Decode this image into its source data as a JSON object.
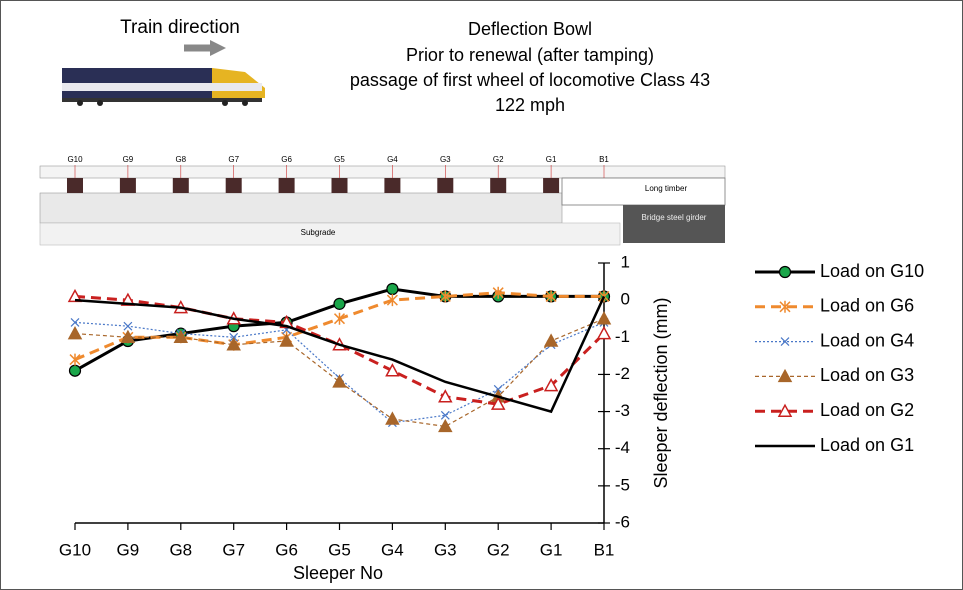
{
  "chart_data": {
    "type": "line",
    "title": "Deflection Bowl",
    "subtitle": [
      "Prior to renewal (after tamping)",
      "passage of first wheel of locomotive Class 43",
      "122 mph"
    ],
    "annotations": {
      "train_direction": "Train direction",
      "long_timber": "Long timber",
      "bridge_girder": "Bridge steel girder",
      "subgrade": "Subgrade"
    },
    "x_label": "Sleeper No",
    "y_label": "Sleeper deflection (mm)",
    "y_axis_side": "right",
    "categories": [
      "G10",
      "G9",
      "G8",
      "G7",
      "G6",
      "G5",
      "G4",
      "G3",
      "G2",
      "G1",
      "B1"
    ],
    "ylim": [
      -6,
      1
    ],
    "yticks": [
      -6,
      -5,
      -4,
      -3,
      -2,
      -1,
      0,
      1
    ],
    "grid": false,
    "legend": "right",
    "series": [
      {
        "name": "Load on G10",
        "color": "#000000",
        "marker": "circle",
        "marker_fill": "#1aa64a",
        "line_style": "solid",
        "line_width": 3,
        "values": [
          -1.9,
          -1.1,
          -0.9,
          -0.7,
          -0.6,
          -0.1,
          0.3,
          0.1,
          0.1,
          0.1,
          0.1
        ]
      },
      {
        "name": "Load on G6",
        "color": "#ef8a2e",
        "marker": "asterisk",
        "line_style": "dash",
        "line_width": 3,
        "values": [
          -1.6,
          -1.0,
          -1.0,
          -1.2,
          -1.0,
          -0.5,
          0.0,
          0.1,
          0.2,
          0.1,
          0.1
        ]
      },
      {
        "name": "Load on G4",
        "color": "#4a78c8",
        "marker": "x",
        "line_style": "dot",
        "line_width": 1.2,
        "values": [
          -0.6,
          -0.7,
          -0.9,
          -1.0,
          -0.8,
          -2.1,
          -3.3,
          -3.1,
          -2.4,
          -1.2,
          -0.6
        ]
      },
      {
        "name": "Load on G3",
        "color": "#a8662a",
        "marker": "triangle",
        "marker_fill": "#a8662a",
        "line_style": "shortdash",
        "line_width": 1.2,
        "values": [
          -0.9,
          -1.0,
          -1.0,
          -1.2,
          -1.1,
          -2.2,
          -3.2,
          -3.4,
          -2.6,
          -1.1,
          -0.5
        ]
      },
      {
        "name": "Load on G2",
        "color": "#c9201f",
        "marker": "triangle",
        "marker_fill": "#ffffff",
        "line_style": "dash",
        "line_width": 3,
        "values": [
          0.1,
          0.0,
          -0.2,
          -0.5,
          -0.6,
          -1.2,
          -1.9,
          -2.6,
          -2.8,
          -2.3,
          -0.9
        ]
      },
      {
        "name": "Load on G1",
        "color": "#000000",
        "marker": "none",
        "line_style": "solid",
        "line_width": 2.5,
        "values": [
          0.0,
          -0.1,
          -0.2,
          -0.5,
          -0.7,
          -1.2,
          -1.6,
          -2.2,
          -2.6,
          -3.0,
          0.1
        ]
      }
    ]
  }
}
